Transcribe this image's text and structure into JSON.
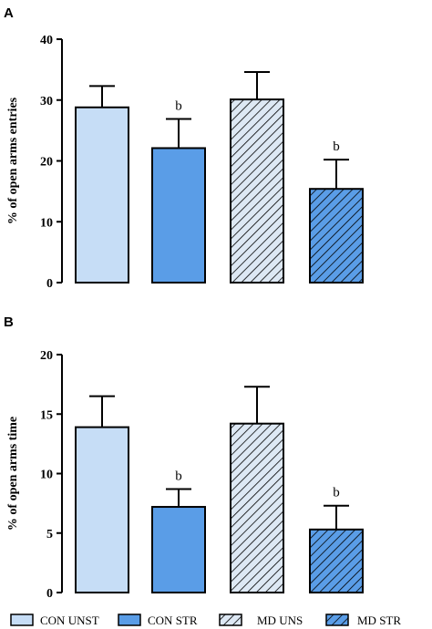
{
  "chart_data": [
    {
      "type": "bar",
      "panel": "A",
      "ylabel": "% of open arms entries",
      "ylim": [
        0,
        40
      ],
      "yticks": [
        "0",
        "10",
        "20",
        "30",
        "40"
      ],
      "categories": [
        "CON UNST",
        "CON STR",
        "MD UNS",
        "MD STR"
      ],
      "values": [
        28.8,
        22.1,
        30.1,
        15.4
      ],
      "errors": [
        3.5,
        4.8,
        4.5,
        4.8
      ],
      "annotations": [
        "",
        "b",
        "",
        "b"
      ]
    },
    {
      "type": "bar",
      "panel": "B",
      "ylabel": "% of open arms time",
      "ylim": [
        0,
        20
      ],
      "yticks": [
        "0",
        "5",
        "10",
        "15",
        "20"
      ],
      "categories": [
        "CON UNST",
        "CON STR",
        "MD UNS",
        "MD STR"
      ],
      "values": [
        13.9,
        7.2,
        14.2,
        5.3
      ],
      "errors": [
        2.6,
        1.5,
        3.1,
        2.0
      ],
      "annotations": [
        "",
        "b",
        "",
        "b"
      ]
    }
  ],
  "legend": {
    "placement": "bottom",
    "items": [
      "CON UNST",
      "CON STR",
      "MD UNS",
      "MD STR"
    ]
  },
  "styles": {
    "bar_fills": [
      "#c6ddf6",
      "#5a9de7",
      "#dde8f4",
      "#5a9de7"
    ],
    "bar_hatched": [
      false,
      false,
      true,
      true
    ],
    "stroke": "#000000"
  }
}
